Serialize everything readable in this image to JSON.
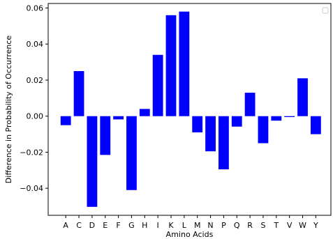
{
  "chart_data": {
    "type": "bar",
    "title": "",
    "xlabel": "Amino Acids",
    "ylabel": "Difference in Probability of Occurrence",
    "categories": [
      "A",
      "C",
      "D",
      "E",
      "F",
      "G",
      "H",
      "I",
      "K",
      "L",
      "M",
      "N",
      "P",
      "Q",
      "R",
      "S",
      "T",
      "V",
      "W",
      "Y"
    ],
    "values": [
      -0.005,
      0.025,
      -0.0503,
      -0.0215,
      -0.0018,
      -0.041,
      0.004,
      0.034,
      0.056,
      0.058,
      -0.009,
      -0.0195,
      -0.0295,
      -0.0058,
      0.013,
      -0.015,
      -0.0025,
      -0.0005,
      0.021,
      -0.01
    ],
    "ylim": [
      -0.055,
      0.0625
    ],
    "yticks": [
      -0.04,
      -0.02,
      0.0,
      0.02,
      0.04,
      0.06
    ],
    "ytick_labels": [
      "−0.04",
      "−0.02",
      "0.00",
      "0.02",
      "0.04",
      "0.06"
    ],
    "bar_color": "#0000ff",
    "grid": false,
    "legend": {
      "placement": "top-right",
      "entries": []
    }
  }
}
